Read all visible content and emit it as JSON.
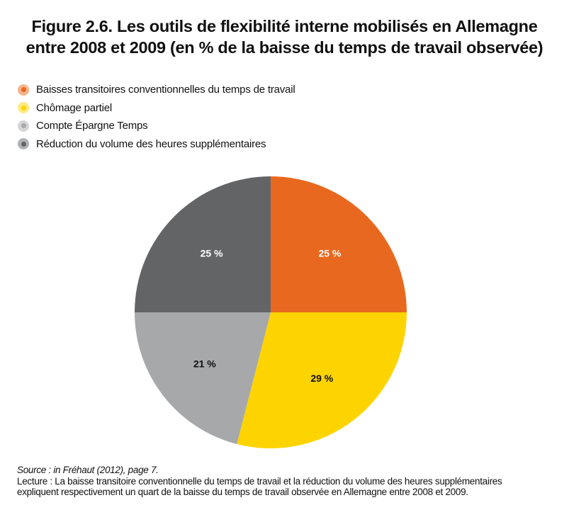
{
  "title_lines": [
    "Figure 2.6. Les outils de flexibilité interne mobilisés en Allemagne",
    "entre 2008 et 2009 (en % de la baisse du temps de travail observée)"
  ],
  "chart_data": {
    "type": "pie",
    "title": "Figure 2.6. Les outils de flexibilité interne mobilisés en Allemagne entre 2008 et 2009 (en % de la baisse du temps de travail observée)",
    "legend_position": "top-left",
    "start": "12 o'clock, clockwise",
    "slices": [
      {
        "name": "Baisses transitoires conventionnelles du temps de travail",
        "value": 25,
        "label": "25 %",
        "color": "#e9681f",
        "legend_ring": "#f5b48a",
        "label_color": "#ffffff"
      },
      {
        "name": "Chômage partiel",
        "value": 29,
        "label": "29 %",
        "color": "#fdd400",
        "legend_ring": "#feea80",
        "label_color": "#111111"
      },
      {
        "name": "Compte Épargne Temps",
        "value": 21,
        "label": "21 %",
        "color": "#a7a8aa",
        "legend_ring": "#d4d4d6",
        "label_color": "#111111"
      },
      {
        "name": "Réduction du volume des heures supplémentaires",
        "value": 25,
        "label": "25 %",
        "color": "#636466",
        "legend_ring": "#b1b2b3",
        "label_color": "#ffffff"
      }
    ]
  },
  "notes": {
    "source": "Source : in Fréhaut (2012), page 7.",
    "lecture_line1": "Lecture : La baisse transitoire conventionnelle du temps de travail et la réduction du volume des heures supplémentaires",
    "lecture_line2": "expliquent respectivement un quart de la baisse du temps de travail observée en Allemagne entre 2008 et 2009."
  }
}
